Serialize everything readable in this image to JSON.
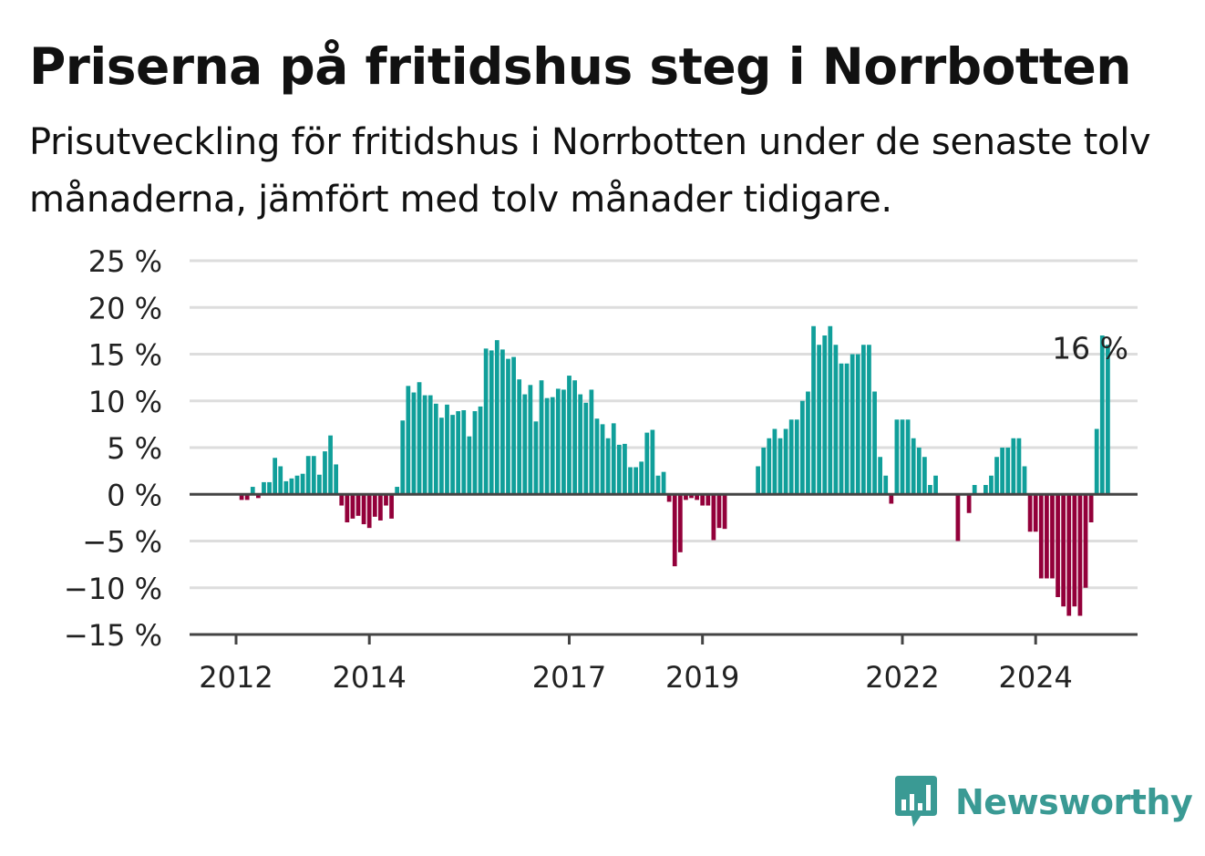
{
  "title": "Priserna på fritidshus steg i Norrbotten",
  "subtitle": "Prisutveckling för fritidshus i Norrbotten under de senaste tolv månaderna, jämfört med tolv månader tidigare.",
  "brand": {
    "name": "Newsworthy",
    "icon": "bar-chart-speech-bubble-icon",
    "color": "#3a9a94"
  },
  "chart_data": {
    "type": "bar",
    "unit": "%",
    "ylim": [
      -15,
      25
    ],
    "yticks": [
      25,
      20,
      15,
      10,
      5,
      0,
      -5,
      -10,
      -15
    ],
    "ytick_labels": [
      "25 %",
      "20 %",
      "15 %",
      "10 %",
      "5 %",
      "0 %",
      "−5 %",
      "−10 %",
      "−15 %"
    ],
    "xticks": [
      {
        "label": "2012",
        "year": 2012.0
      },
      {
        "label": "2014",
        "year": 2014.0
      },
      {
        "label": "2017",
        "year": 2017.0
      },
      {
        "label": "2019",
        "year": 2019.0
      },
      {
        "label": "2022",
        "year": 2022.0
      },
      {
        "label": "2024",
        "year": 2024.0
      }
    ],
    "grid": true,
    "colors": {
      "positive": "#109f9a",
      "negative": "#93003a"
    },
    "annotation": {
      "label": "16 %",
      "year": 2024.83,
      "value": 16
    },
    "series": [
      {
        "start": "2011-10",
        "frequency": "monthly",
        "values": [
          0,
          0,
          0,
          0,
          -0.6,
          -0.6,
          0.8,
          -0.4,
          1.3,
          1.3,
          3.9,
          3.0,
          1.4,
          1.7,
          2.0,
          2.2,
          4.1,
          4.1,
          2.1,
          4.6,
          6.3,
          3.2,
          -1.2,
          -3.0,
          -2.6,
          -2.3,
          -3.2,
          -3.6,
          -2.4,
          -2.8,
          -1.2,
          -2.6,
          0.8,
          7.9,
          11.6,
          10.9,
          12.0,
          10.6,
          10.6,
          9.7,
          8.2,
          9.6,
          8.5,
          8.9,
          9.0,
          6.2,
          8.9,
          9.4,
          15.6,
          15.4,
          16.5,
          15.5,
          14.5,
          14.7,
          12.3,
          10.7,
          11.7,
          7.8,
          12.2,
          10.3,
          10.4,
          11.3,
          11.2,
          12.7,
          12.2,
          10.7,
          9.8,
          11.2,
          8.1,
          7.5,
          6.0,
          7.6,
          5.3,
          5.4,
          2.9,
          2.9,
          3.5,
          6.6,
          6.9,
          2.0,
          2.4,
          -0.8,
          -7.7,
          -6.2,
          -0.6,
          -0.4,
          -0.6,
          -1.2,
          -1.2,
          -4.9,
          -3.6,
          -3.7,
          0,
          0,
          0,
          0,
          0,
          3.0,
          5.0,
          6.0,
          7.0,
          6.0,
          7.0,
          8.0,
          8.0,
          10.0,
          11.0,
          18.0,
          16.0,
          17.0,
          18.0,
          16.0,
          14.0,
          14.0,
          15.0,
          15.0,
          16.0,
          16.0,
          11.0,
          4.0,
          2.0,
          -1.0,
          8.0,
          8.0,
          8.0,
          6.0,
          5.0,
          4.0,
          1.0,
          2.0,
          0,
          0,
          0,
          -5.0,
          0,
          -2.0,
          1.0,
          0,
          1.0,
          2.0,
          4.0,
          5.0,
          5.0,
          6.0,
          6.0,
          3.0,
          -4.0,
          -4.0,
          -9.0,
          -9.0,
          -9.0,
          -11.0,
          -12.0,
          -13.0,
          -12.0,
          -13.0,
          -10.0,
          -3.0,
          7.0,
          17.0,
          16.0
        ]
      }
    ]
  }
}
